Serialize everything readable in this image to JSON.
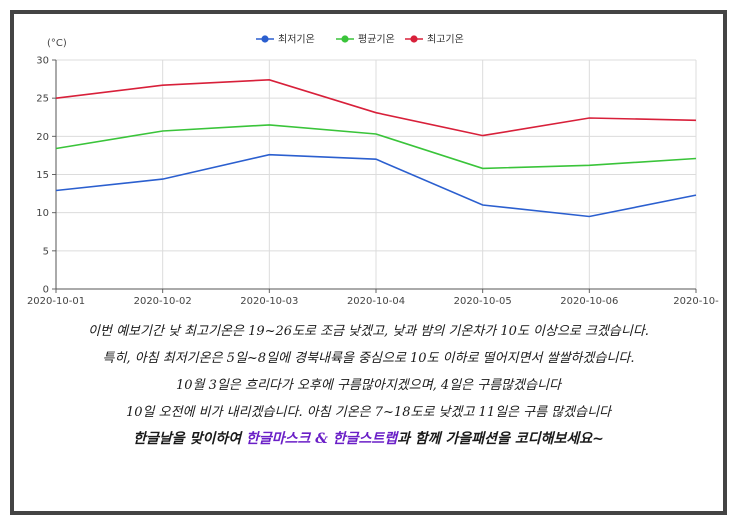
{
  "colors": {
    "min": "#2b5fcf",
    "avg": "#3ac43a",
    "max": "#d8203a",
    "highlight": "#6a1fc7"
  },
  "chart_data": {
    "type": "line",
    "ylabel": "(°C)",
    "xlabel": "",
    "ylim": [
      0,
      30
    ],
    "yticks": [
      0,
      5,
      10,
      15,
      20,
      25,
      30
    ],
    "grid": true,
    "legend_position": "top-center",
    "x": [
      "2020-10-01",
      "2020-10-02",
      "2020-10-03",
      "2020-10-04",
      "2020-10-05",
      "2020-10-06",
      "2020-10-"
    ],
    "series": [
      {
        "name": "최저기온",
        "values": [
          12.9,
          14.4,
          17.6,
          17.0,
          11.0,
          9.5,
          12.3
        ]
      },
      {
        "name": "평균기온",
        "values": [
          18.4,
          20.7,
          21.5,
          20.3,
          15.8,
          16.2,
          17.1
        ]
      },
      {
        "name": "최고기온",
        "values": [
          25.0,
          26.7,
          27.4,
          23.1,
          20.1,
          22.4,
          22.1
        ]
      }
    ]
  },
  "notes": {
    "line1": "이번 예보기간 낮 최고기온은 19~26도로 조금 낮겠고, 낮과 밤의 기온차가 10도 이상으로 크겠습니다.",
    "line2": "특히, 아침 최저기온은 5일~8일에 경북내륙을 중심으로 10도 이하로 떨어지면서 쌀쌀하겠습니다.",
    "line3": "10월 3일은 흐리다가 오후에 구름많아지겠으며, 4일은 구름많겠습니다",
    "line4": "10일 오전에 비가 내리겠습니다. 아침 기온은 7~18도로 낮겠고 11일은 구름 많겠습니다",
    "final_prefix": "한글날을 맞이하여 ",
    "final_highlight": "한글마스크 & 한글스트랩",
    "final_suffix": "과 함께 가을패션을 코디해보세요~"
  }
}
